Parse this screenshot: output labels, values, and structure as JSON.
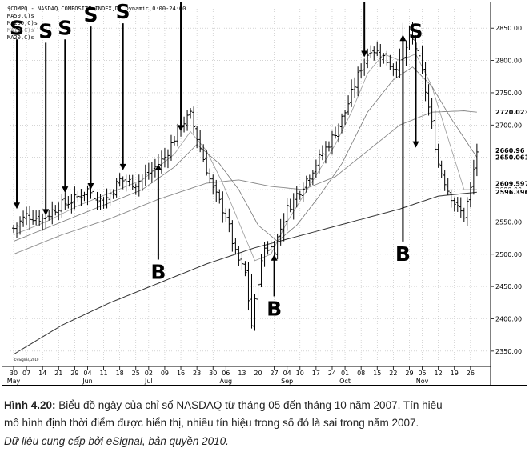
{
  "chart_header": {
    "line1": "$COMPQ - NASDAQ COMPOSITE INDEX,D) Dynamic,0:00-24:00",
    "line2": "MA50,C)s",
    "line3": "MA200,C)s",
    "line4": "MA10,C)s",
    "line5": "MA20,C)s"
  },
  "caption": {
    "label": "Hình 4.20:",
    "text1": " Biểu đồ ngày của chỉ số NASDAQ từ tháng 05 đến tháng 10 năm 2007. Tín hiệu",
    "text2": "mô hình định thời điểm được hiển thị, nhiều tín hiệu trong số đó là sai trong năm 2007.",
    "text3": "Dữ liệu cung cấp bởi eSignal, bản quyền 2010."
  },
  "copyright_mark": "©eSignal, 2010",
  "chart_data": {
    "type": "line",
    "ylim": [
      2330,
      2880
    ],
    "yticks": [
      2350,
      2400,
      2450,
      2500,
      2550,
      2600,
      2650,
      2700,
      2750,
      2800,
      2850
    ],
    "ytick_labels": [
      "2350.00",
      "2400.00",
      "2450.00",
      "2500.00",
      "2550.00",
      "2600.00",
      "2650.00",
      "2700.00",
      "2750.00",
      "2800.00",
      "2850.00"
    ],
    "last_value_labels": [
      {
        "label": "2720.023",
        "value": 2720.023
      },
      {
        "label": "2660.96",
        "value": 2660.96
      },
      {
        "label": "2650.061",
        "value": 2650.061
      },
      {
        "label": "2609.597",
        "value": 2609.597
      },
      {
        "label": "2596.39665",
        "value": 2596.39665
      }
    ],
    "x_ticks": [
      "30",
      "07",
      "14",
      "21",
      "29",
      "04",
      "11",
      "18",
      "25",
      "02",
      "09",
      "16",
      "23",
      "30",
      "06",
      "13",
      "20",
      "27",
      "04",
      "10",
      "17",
      "24",
      "01",
      "08",
      "15",
      "22",
      "29",
      "05",
      "12",
      "19",
      "26"
    ],
    "x_tick_positions": [
      0,
      4,
      9,
      14,
      19,
      23,
      28,
      33,
      38,
      42,
      47,
      52,
      57,
      62,
      66,
      71,
      76,
      81,
      85,
      89,
      94,
      99,
      103,
      108,
      113,
      118,
      123,
      127,
      132,
      137,
      142
    ],
    "month_labels": [
      {
        "label": "May",
        "index": 0
      },
      {
        "label": "Jun",
        "index": 23
      },
      {
        "label": "Jul",
        "index": 42
      },
      {
        "label": "Aug",
        "index": 66
      },
      {
        "label": "Sep",
        "index": 85
      },
      {
        "label": "Oct",
        "index": 103
      },
      {
        "label": "Nov",
        "index": 127
      }
    ],
    "price_keypoints": [
      [
        0,
        2540
      ],
      [
        4,
        2560
      ],
      [
        9,
        2555
      ],
      [
        14,
        2575
      ],
      [
        19,
        2585
      ],
      [
        23,
        2600
      ],
      [
        28,
        2580
      ],
      [
        33,
        2615
      ],
      [
        38,
        2610
      ],
      [
        42,
        2625
      ],
      [
        47,
        2650
      ],
      [
        52,
        2700
      ],
      [
        55,
        2715
      ],
      [
        57,
        2680
      ],
      [
        62,
        2600
      ],
      [
        66,
        2560
      ],
      [
        69,
        2500
      ],
      [
        72,
        2470
      ],
      [
        74,
        2390
      ],
      [
        76,
        2460
      ],
      [
        78,
        2510
      ],
      [
        81,
        2510
      ],
      [
        85,
        2570
      ],
      [
        89,
        2600
      ],
      [
        94,
        2640
      ],
      [
        99,
        2680
      ],
      [
        103,
        2720
      ],
      [
        108,
        2790
      ],
      [
        111,
        2820
      ],
      [
        114,
        2810
      ],
      [
        118,
        2790
      ],
      [
        121,
        2800
      ],
      [
        123,
        2840
      ],
      [
        125,
        2820
      ],
      [
        127,
        2780
      ],
      [
        130,
        2700
      ],
      [
        132,
        2640
      ],
      [
        135,
        2600
      ],
      [
        138,
        2570
      ],
      [
        140,
        2560
      ],
      [
        142,
        2600
      ],
      [
        144,
        2660
      ]
    ],
    "series": [
      {
        "key": "ma10",
        "keypoints": [
          [
            0,
            2530
          ],
          [
            10,
            2550
          ],
          [
            20,
            2575
          ],
          [
            30,
            2595
          ],
          [
            40,
            2615
          ],
          [
            50,
            2655
          ],
          [
            55,
            2690
          ],
          [
            60,
            2660
          ],
          [
            65,
            2610
          ],
          [
            70,
            2550
          ],
          [
            75,
            2490
          ],
          [
            80,
            2500
          ],
          [
            85,
            2550
          ],
          [
            90,
            2590
          ],
          [
            95,
            2630
          ],
          [
            100,
            2670
          ],
          [
            105,
            2720
          ],
          [
            110,
            2780
          ],
          [
            115,
            2810
          ],
          [
            120,
            2800
          ],
          [
            125,
            2810
          ],
          [
            130,
            2760
          ],
          [
            135,
            2680
          ],
          [
            140,
            2600
          ],
          [
            144,
            2600
          ]
        ]
      },
      {
        "key": "ma20",
        "keypoints": [
          [
            0,
            2520
          ],
          [
            10,
            2540
          ],
          [
            20,
            2560
          ],
          [
            30,
            2580
          ],
          [
            40,
            2600
          ],
          [
            50,
            2635
          ],
          [
            57,
            2670
          ],
          [
            64,
            2640
          ],
          [
            70,
            2600
          ],
          [
            76,
            2545
          ],
          [
            82,
            2520
          ],
          [
            88,
            2545
          ],
          [
            95,
            2590
          ],
          [
            102,
            2640
          ],
          [
            110,
            2720
          ],
          [
            118,
            2770
          ],
          [
            124,
            2790
          ],
          [
            130,
            2760
          ],
          [
            136,
            2710
          ],
          [
            144,
            2650
          ]
        ]
      },
      {
        "key": "ma50",
        "keypoints": [
          [
            0,
            2500
          ],
          [
            15,
            2530
          ],
          [
            30,
            2555
          ],
          [
            45,
            2585
          ],
          [
            60,
            2610
          ],
          [
            70,
            2615
          ],
          [
            80,
            2605
          ],
          [
            90,
            2600
          ],
          [
            100,
            2620
          ],
          [
            110,
            2660
          ],
          [
            120,
            2700
          ],
          [
            130,
            2720
          ],
          [
            140,
            2722
          ],
          [
            144,
            2720
          ]
        ]
      },
      {
        "key": "ma200",
        "keypoints": [
          [
            0,
            2345
          ],
          [
            15,
            2390
          ],
          [
            30,
            2425
          ],
          [
            45,
            2455
          ],
          [
            60,
            2485
          ],
          [
            75,
            2510
          ],
          [
            90,
            2530
          ],
          [
            105,
            2550
          ],
          [
            120,
            2570
          ],
          [
            132,
            2590
          ],
          [
            144,
            2596
          ]
        ]
      }
    ],
    "signals": [
      {
        "label": "S",
        "index": 1,
        "dir": "down",
        "text_value": 2840,
        "tip_value": 2570
      },
      {
        "label": "S",
        "index": 10,
        "dir": "down",
        "text_value": 2835,
        "tip_value": 2560
      },
      {
        "label": "S",
        "index": 16,
        "dir": "down",
        "text_value": 2840,
        "tip_value": 2595
      },
      {
        "label": "S",
        "index": 24,
        "dir": "down",
        "text_value": 2860,
        "tip_value": 2600
      },
      {
        "label": "S",
        "index": 34,
        "dir": "down",
        "text_value": 2865,
        "tip_value": 2630
      },
      {
        "label": "S",
        "index": 52,
        "dir": "down",
        "text_value": 2930,
        "tip_value": 2690
      },
      {
        "label": "B",
        "index": 45,
        "dir": "up",
        "text_value": 2462,
        "tip_value": 2640
      },
      {
        "label": "B",
        "index": 81,
        "dir": "up",
        "text_value": 2405,
        "tip_value": 2500
      },
      {
        "label": "B",
        "index": 121,
        "dir": "up",
        "text_value": 2490,
        "tip_value": 2840
      },
      {
        "label": "S",
        "index": 109,
        "dir": "down",
        "text_value": 2900,
        "tip_value": 2805
      },
      {
        "label": "S",
        "index": 125,
        "dir": "down",
        "text_value": 2835,
        "tip_value": 2665
      }
    ]
  }
}
